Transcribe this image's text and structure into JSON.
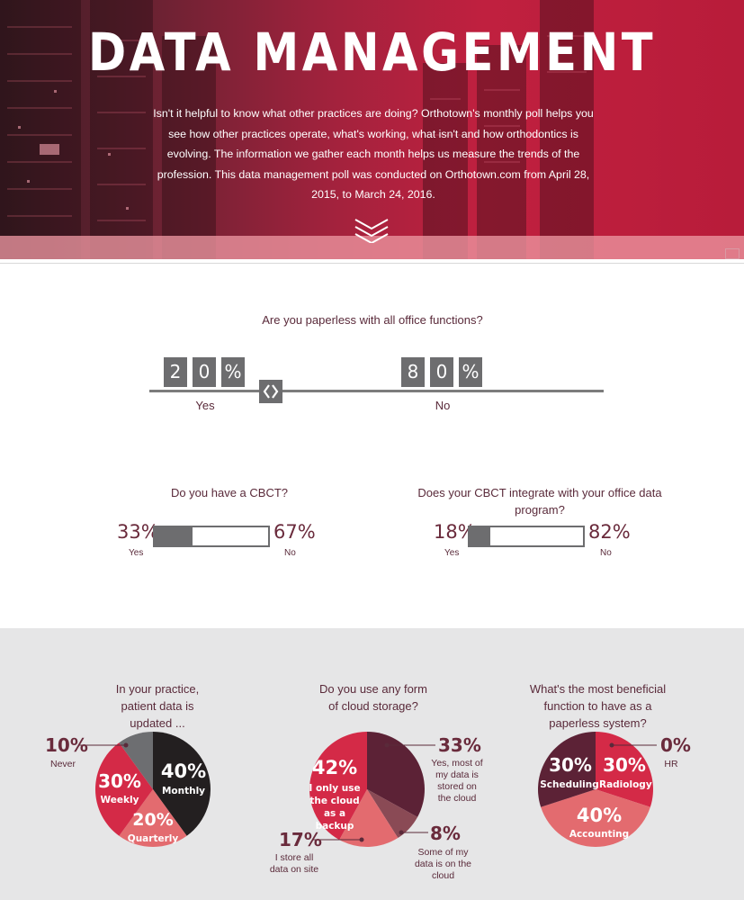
{
  "header": {
    "title": "DATA MANAGEMENT",
    "intro": "Isn't it helpful to know what other practices are doing? Orthotown's monthly poll helps you see how other practices operate, what's working, what isn't and how orthodontics is evolving. The information we gather each month helps us measure the trends of the profession. This data management poll was conducted on Orthotown.com from April 28, 2015, to March 24, 2016."
  },
  "paperless": {
    "question": "Are you paperless with all office functions?",
    "yes_digits": [
      "2",
      "0",
      "%"
    ],
    "no_digits": [
      "8",
      "0",
      "%"
    ],
    "yes_label": "Yes",
    "no_label": "No",
    "yes_value": 20,
    "no_value": 80
  },
  "cbct": {
    "question": "Do you have a CBCT?",
    "yes_pct": "33%",
    "no_pct": "67%",
    "yes_label": "Yes",
    "no_label": "No",
    "yes_value": 33
  },
  "cbct_integrate": {
    "question": "Does your CBCT integrate with your office data program?",
    "yes_pct": "18%",
    "no_pct": "82%",
    "yes_label": "Yes",
    "no_label": "No",
    "yes_value": 18
  },
  "colors": {
    "dark": "#231f20",
    "red": "#d42a47",
    "salmon": "#e36b6f",
    "grey": "#6d6e71",
    "maroon": "#5c2236",
    "text": "#5a2a3a"
  },
  "chart_data": [
    {
      "type": "pie",
      "title": "In your practice, patient data is updated ...",
      "slices": [
        {
          "label": "Monthly",
          "pct_text": "40%",
          "value": 40
        },
        {
          "label": "Quarterly",
          "pct_text": "20%",
          "value": 20
        },
        {
          "label": "Weekly",
          "pct_text": "30%",
          "value": 30
        },
        {
          "label": "Never",
          "pct_text": "10%",
          "value": 10
        }
      ]
    },
    {
      "type": "pie",
      "title": "Do you use any form of cloud storage?",
      "slices": [
        {
          "label": "Yes, most of my data is stored on the cloud",
          "pct_text": "33%",
          "value": 33
        },
        {
          "label": "Some of my data is on the cloud",
          "pct_text": "8%",
          "value": 8
        },
        {
          "label": "I store all data on site",
          "pct_text": "17%",
          "value": 17
        },
        {
          "label": "I only use the cloud as a backup",
          "pct_text": "42%",
          "value": 42
        }
      ]
    },
    {
      "type": "pie",
      "title": "What's the most beneficial function to have as a paperless system?",
      "slices": [
        {
          "label": "Radiology",
          "pct_text": "30%",
          "value": 30
        },
        {
          "label": "Accounting",
          "pct_text": "40%",
          "value": 40
        },
        {
          "label": "Scheduling",
          "pct_text": "30%",
          "value": 30
        },
        {
          "label": "HR",
          "pct_text": "0%",
          "value": 0
        }
      ]
    }
  ]
}
